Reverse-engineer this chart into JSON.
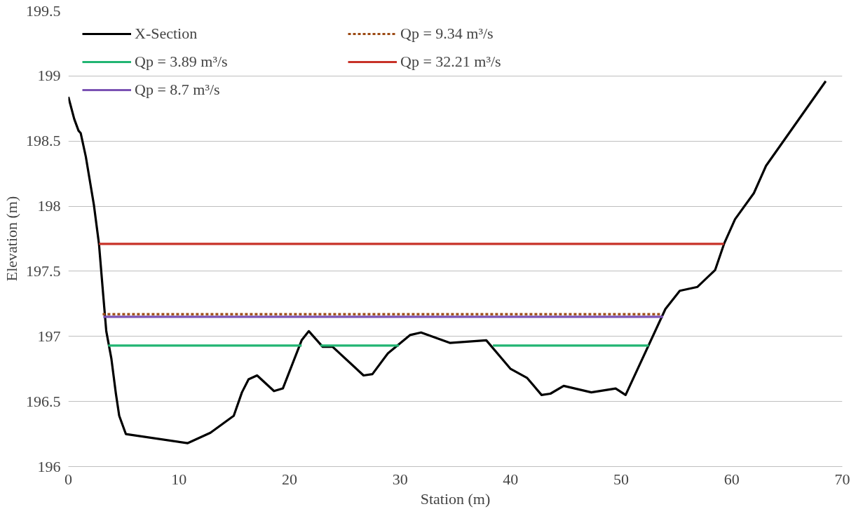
{
  "chart_data": {
    "type": "line",
    "xlabel": "Station (m)",
    "ylabel": "Elevation (m)",
    "xlim": [
      0,
      70
    ],
    "ylim": [
      196,
      199.5
    ],
    "xticks": [
      0,
      10,
      20,
      30,
      40,
      50,
      60,
      70
    ],
    "yticks": [
      196,
      196.5,
      197,
      197.5,
      198,
      198.5,
      199,
      199.5
    ],
    "grid": "y",
    "legend": "top left",
    "marker": "none",
    "series": [
      {
        "name": "X-Section",
        "color": "#000000",
        "line_style": "solid",
        "x": [
          0,
          0.53,
          0.92,
          1.12,
          1.58,
          2.31,
          2.77,
          3.16,
          3.43,
          3.89,
          4.3,
          4.6,
          5.2,
          10.8,
          12.85,
          14.96,
          15.7,
          16.3,
          17.07,
          18.6,
          19.4,
          21.1,
          21.75,
          23.0,
          23.9,
          26.7,
          27.5,
          28.9,
          30.9,
          31.9,
          34.5,
          37.8,
          40.0,
          41.5,
          42.8,
          43.6,
          44.8,
          47.3,
          49.5,
          50.4,
          54.0,
          55.3,
          56.9,
          58.5,
          59.3,
          60.3,
          62.0,
          63.1,
          68.5
        ],
        "values": [
          198.84,
          198.67,
          198.58,
          198.56,
          198.38,
          198.01,
          197.71,
          197.31,
          197.04,
          196.83,
          196.56,
          196.39,
          196.25,
          196.18,
          196.26,
          196.39,
          196.57,
          196.67,
          196.7,
          196.58,
          196.6,
          196.97,
          197.04,
          196.92,
          196.92,
          196.7,
          196.71,
          196.87,
          197.01,
          197.03,
          196.95,
          196.97,
          196.75,
          196.68,
          196.55,
          196.56,
          196.62,
          196.57,
          196.6,
          196.55,
          197.21,
          197.35,
          197.38,
          197.51,
          197.71,
          197.9,
          198.1,
          198.31,
          198.96
        ]
      },
      {
        "name": "Qp = 3.89 m³/s",
        "color": "#22b573",
        "line_style": "solid",
        "x": [
          3.6,
          21.1,
          null,
          22.8,
          29.9,
          null,
          38.4,
          52.5
        ],
        "values": [
          196.93,
          196.93,
          null,
          196.93,
          196.93,
          null,
          196.93,
          196.93
        ]
      },
      {
        "name": "Qp = 8.7 m³/s",
        "color": "#7b52b3",
        "line_style": "solid",
        "x": [
          3.16,
          53.8
        ],
        "values": [
          197.15,
          197.15
        ]
      },
      {
        "name": "Qp = 9.34 m³/s",
        "color": "#9c4a14",
        "line_style": "dashed",
        "x": [
          3.1,
          53.7
        ],
        "values": [
          197.17,
          197.17
        ]
      },
      {
        "name": "Qp = 32.21 m³/s",
        "color": "#c83228",
        "line_style": "solid",
        "x": [
          2.77,
          59.3
        ],
        "values": [
          197.71,
          197.71
        ]
      }
    ]
  }
}
